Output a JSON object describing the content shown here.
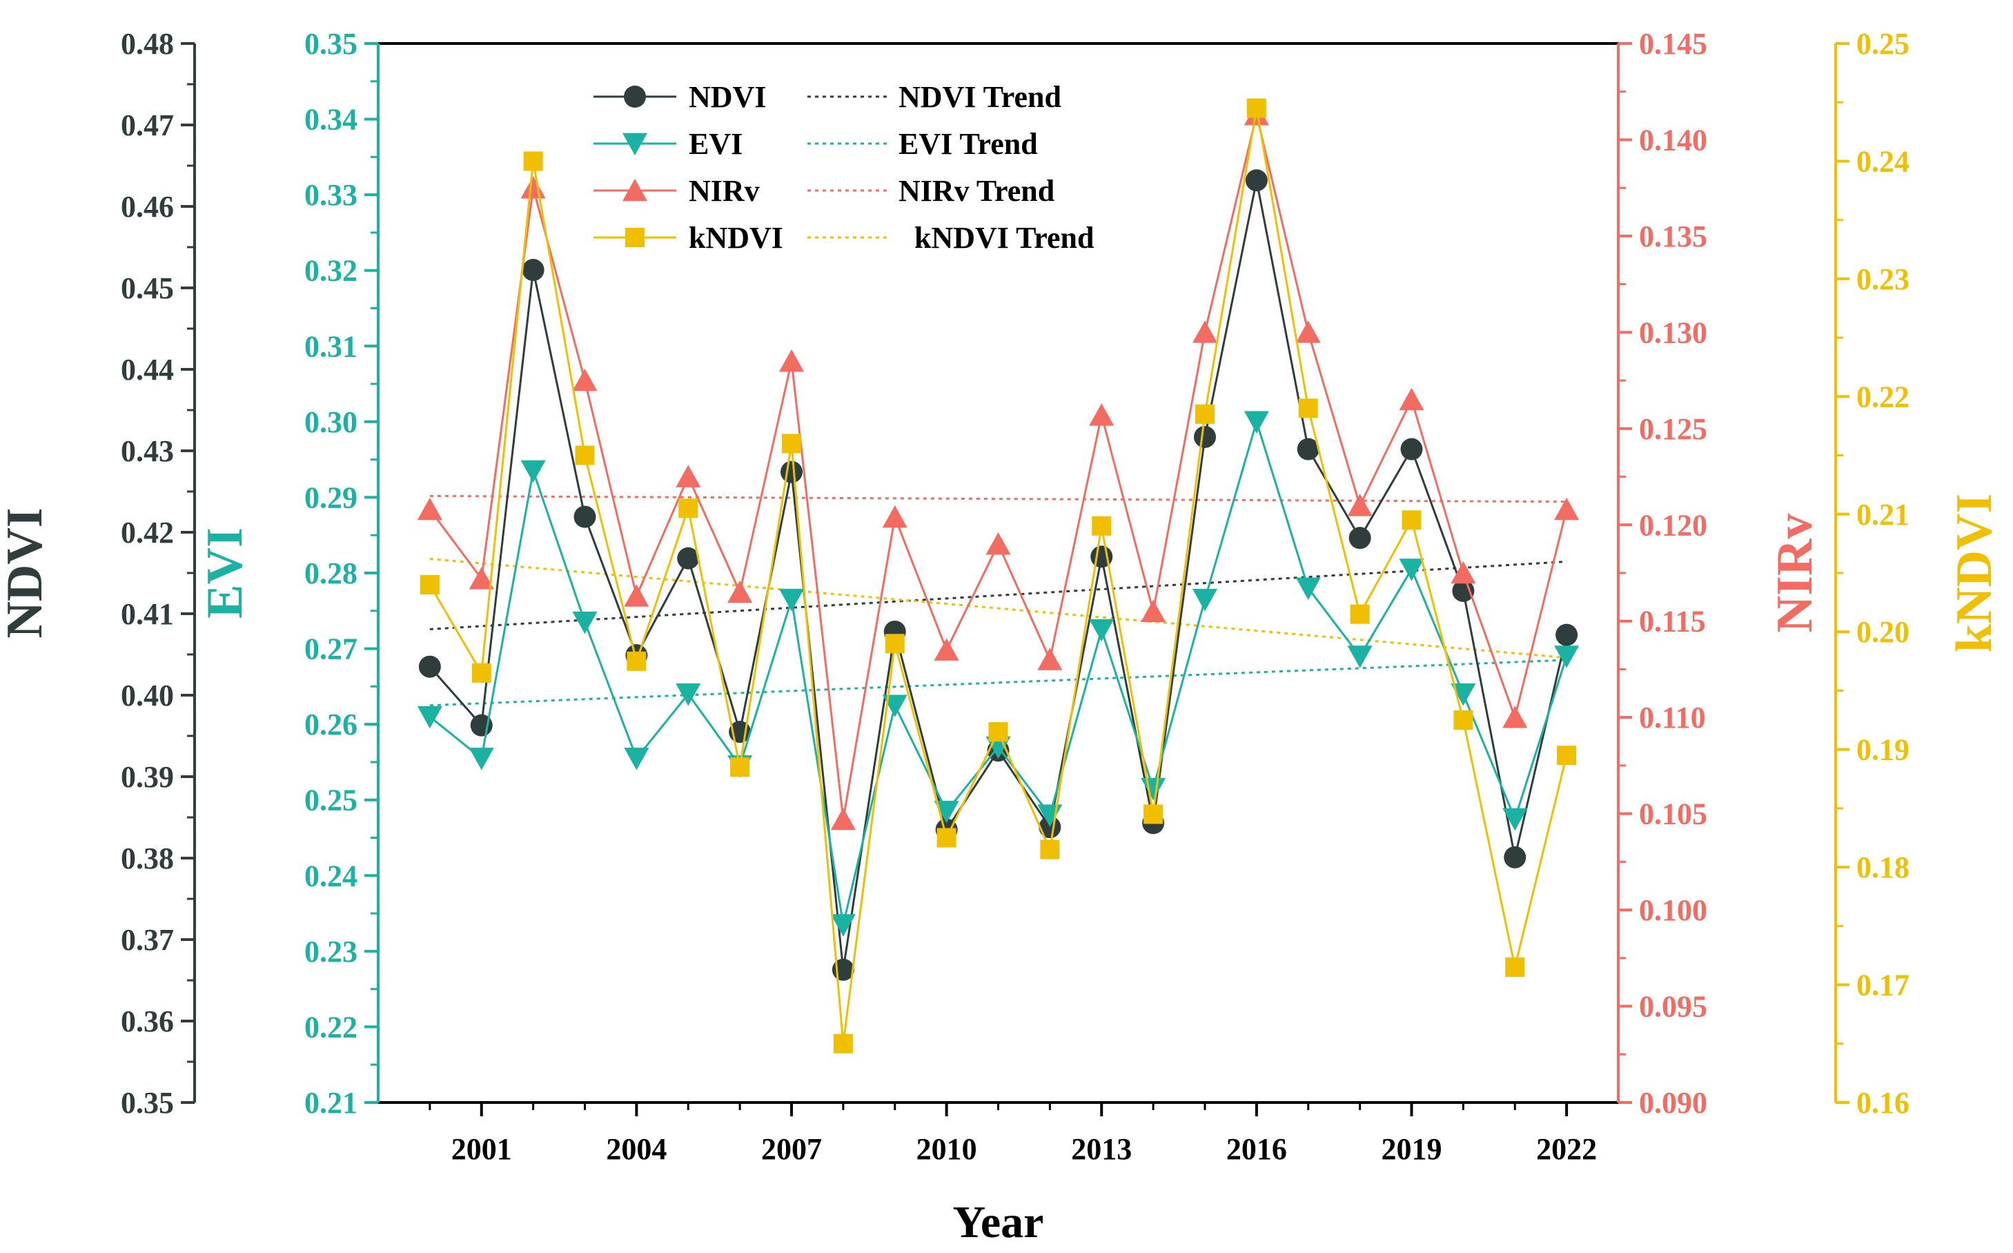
{
  "chart_data": {
    "type": "line",
    "xlabel": "Year",
    "x": [
      2000,
      2001,
      2002,
      2003,
      2004,
      2005,
      2006,
      2007,
      2008,
      2009,
      2010,
      2011,
      2012,
      2013,
      2014,
      2015,
      2016,
      2017,
      2018,
      2019,
      2020,
      2021,
      2022
    ],
    "xlim": [
      1999,
      2023
    ],
    "xticks": [
      "2001",
      "2004",
      "2007",
      "2010",
      "2013",
      "2016",
      "2019",
      "2022"
    ],
    "axes": [
      {
        "id": "ndvi",
        "label": "NDVI",
        "color": "#2f3e3d",
        "ylim": [
          0.35,
          0.48
        ],
        "ticks": [
          "0.35",
          "0.36",
          "0.37",
          "0.38",
          "0.39",
          "0.40",
          "0.41",
          "0.42",
          "0.43",
          "0.44",
          "0.45",
          "0.46",
          "0.47",
          "0.48"
        ]
      },
      {
        "id": "evi",
        "label": "EVI",
        "color": "#1ab3a3",
        "ylim": [
          0.21,
          0.35
        ],
        "ticks": [
          "0.21",
          "0.22",
          "0.23",
          "0.24",
          "0.25",
          "0.26",
          "0.27",
          "0.28",
          "0.29",
          "0.30",
          "0.31",
          "0.32",
          "0.33",
          "0.34",
          "0.35"
        ]
      },
      {
        "id": "nirv",
        "label": "NIRv",
        "color": "#f46b62",
        "ylim": [
          0.09,
          0.145
        ],
        "ticks": [
          "0.090",
          "0.095",
          "0.100",
          "0.105",
          "0.110",
          "0.115",
          "0.120",
          "0.125",
          "0.130",
          "0.135",
          "0.140",
          "0.145"
        ]
      },
      {
        "id": "kndvi",
        "label": "kNDVI",
        "color": "#f0c000",
        "ylim": [
          0.16,
          0.25
        ],
        "ticks": [
          "0.16",
          "0.17",
          "0.18",
          "0.19",
          "0.20",
          "0.21",
          "0.22",
          "0.23",
          "0.24",
          "0.25"
        ]
      }
    ],
    "series": [
      {
        "name": "NDVI",
        "axis": "ndvi",
        "marker": "circle",
        "color": "#2f3e3d",
        "line_color": "#2f3e3d",
        "values": [
          0.4035,
          0.3963,
          0.4522,
          0.4219,
          0.4049,
          0.4168,
          0.3955,
          0.4274,
          0.3663,
          0.4078,
          0.3835,
          0.3932,
          0.3838,
          0.417,
          0.3843,
          0.4317,
          0.4632,
          0.4302,
          0.4193,
          0.4302,
          0.4128,
          0.3801,
          0.4074
        ]
      },
      {
        "name": "EVI",
        "axis": "evi",
        "marker": "triangle-down",
        "color": "#1ab3a3",
        "line_color": "#1ab3a3",
        "values": [
          0.261,
          0.2555,
          0.2935,
          0.2735,
          0.2555,
          0.264,
          0.2545,
          0.2765,
          0.2335,
          0.2625,
          0.2485,
          0.257,
          0.248,
          0.2725,
          0.2515,
          0.2765,
          0.3,
          0.278,
          0.269,
          0.2805,
          0.264,
          0.2475,
          0.269
        ]
      },
      {
        "name": "NIRv",
        "axis": "nirv",
        "marker": "triangle-up",
        "color": "#f46b62",
        "line_color": "#f46b62",
        "values": [
          0.1208,
          0.1172,
          0.1375,
          0.1275,
          0.1163,
          0.1225,
          0.1165,
          0.1285,
          0.1047,
          0.1204,
          0.1135,
          0.119,
          0.113,
          0.1257,
          0.1155,
          0.13,
          0.1413,
          0.13,
          0.121,
          0.1265,
          0.1175,
          0.11,
          0.1208
        ]
      },
      {
        "name": "kNDVI",
        "axis": "kndvi",
        "marker": "square",
        "color": "#f0c000",
        "line_color": "#f0c000",
        "values": [
          0.204,
          0.1965,
          0.24,
          0.215,
          0.1975,
          0.2105,
          0.1885,
          0.216,
          0.165,
          0.199,
          0.1825,
          0.1915,
          0.1815,
          0.209,
          0.1845,
          0.2185,
          0.2445,
          0.219,
          0.2015,
          0.2095,
          0.1925,
          0.1715,
          0.1895
        ]
      }
    ],
    "trends": [
      {
        "name": "NDVI Trend",
        "axis": "ndvi",
        "color": "#2f3e3d",
        "x": [
          2000,
          2022
        ],
        "values": [
          0.4081,
          0.4164
        ]
      },
      {
        "name": "EVI Trend",
        "axis": "evi",
        "color": "#1ab3a3",
        "x": [
          2000,
          2022
        ],
        "values": [
          0.2625,
          0.2685
        ]
      },
      {
        "name": "NIRv Trend",
        "axis": "nirv",
        "color": "#f46b62",
        "x": [
          2000,
          2022
        ],
        "values": [
          0.1215,
          0.1212
        ]
      },
      {
        "name": "kNDVI Trend",
        "axis": "kndvi",
        "color": "#f0c000",
        "x": [
          2000,
          2022
        ],
        "values": [
          0.2062,
          0.1978
        ]
      }
    ],
    "legend": {
      "placement": "top-left",
      "entries": [
        "NDVI",
        "EVI",
        "NIRv",
        "kNDVI"
      ],
      "trend_entries": [
        "NDVI Trend",
        "EVI Trend",
        "NIRv Trend",
        "kNDVI Trend"
      ]
    }
  }
}
